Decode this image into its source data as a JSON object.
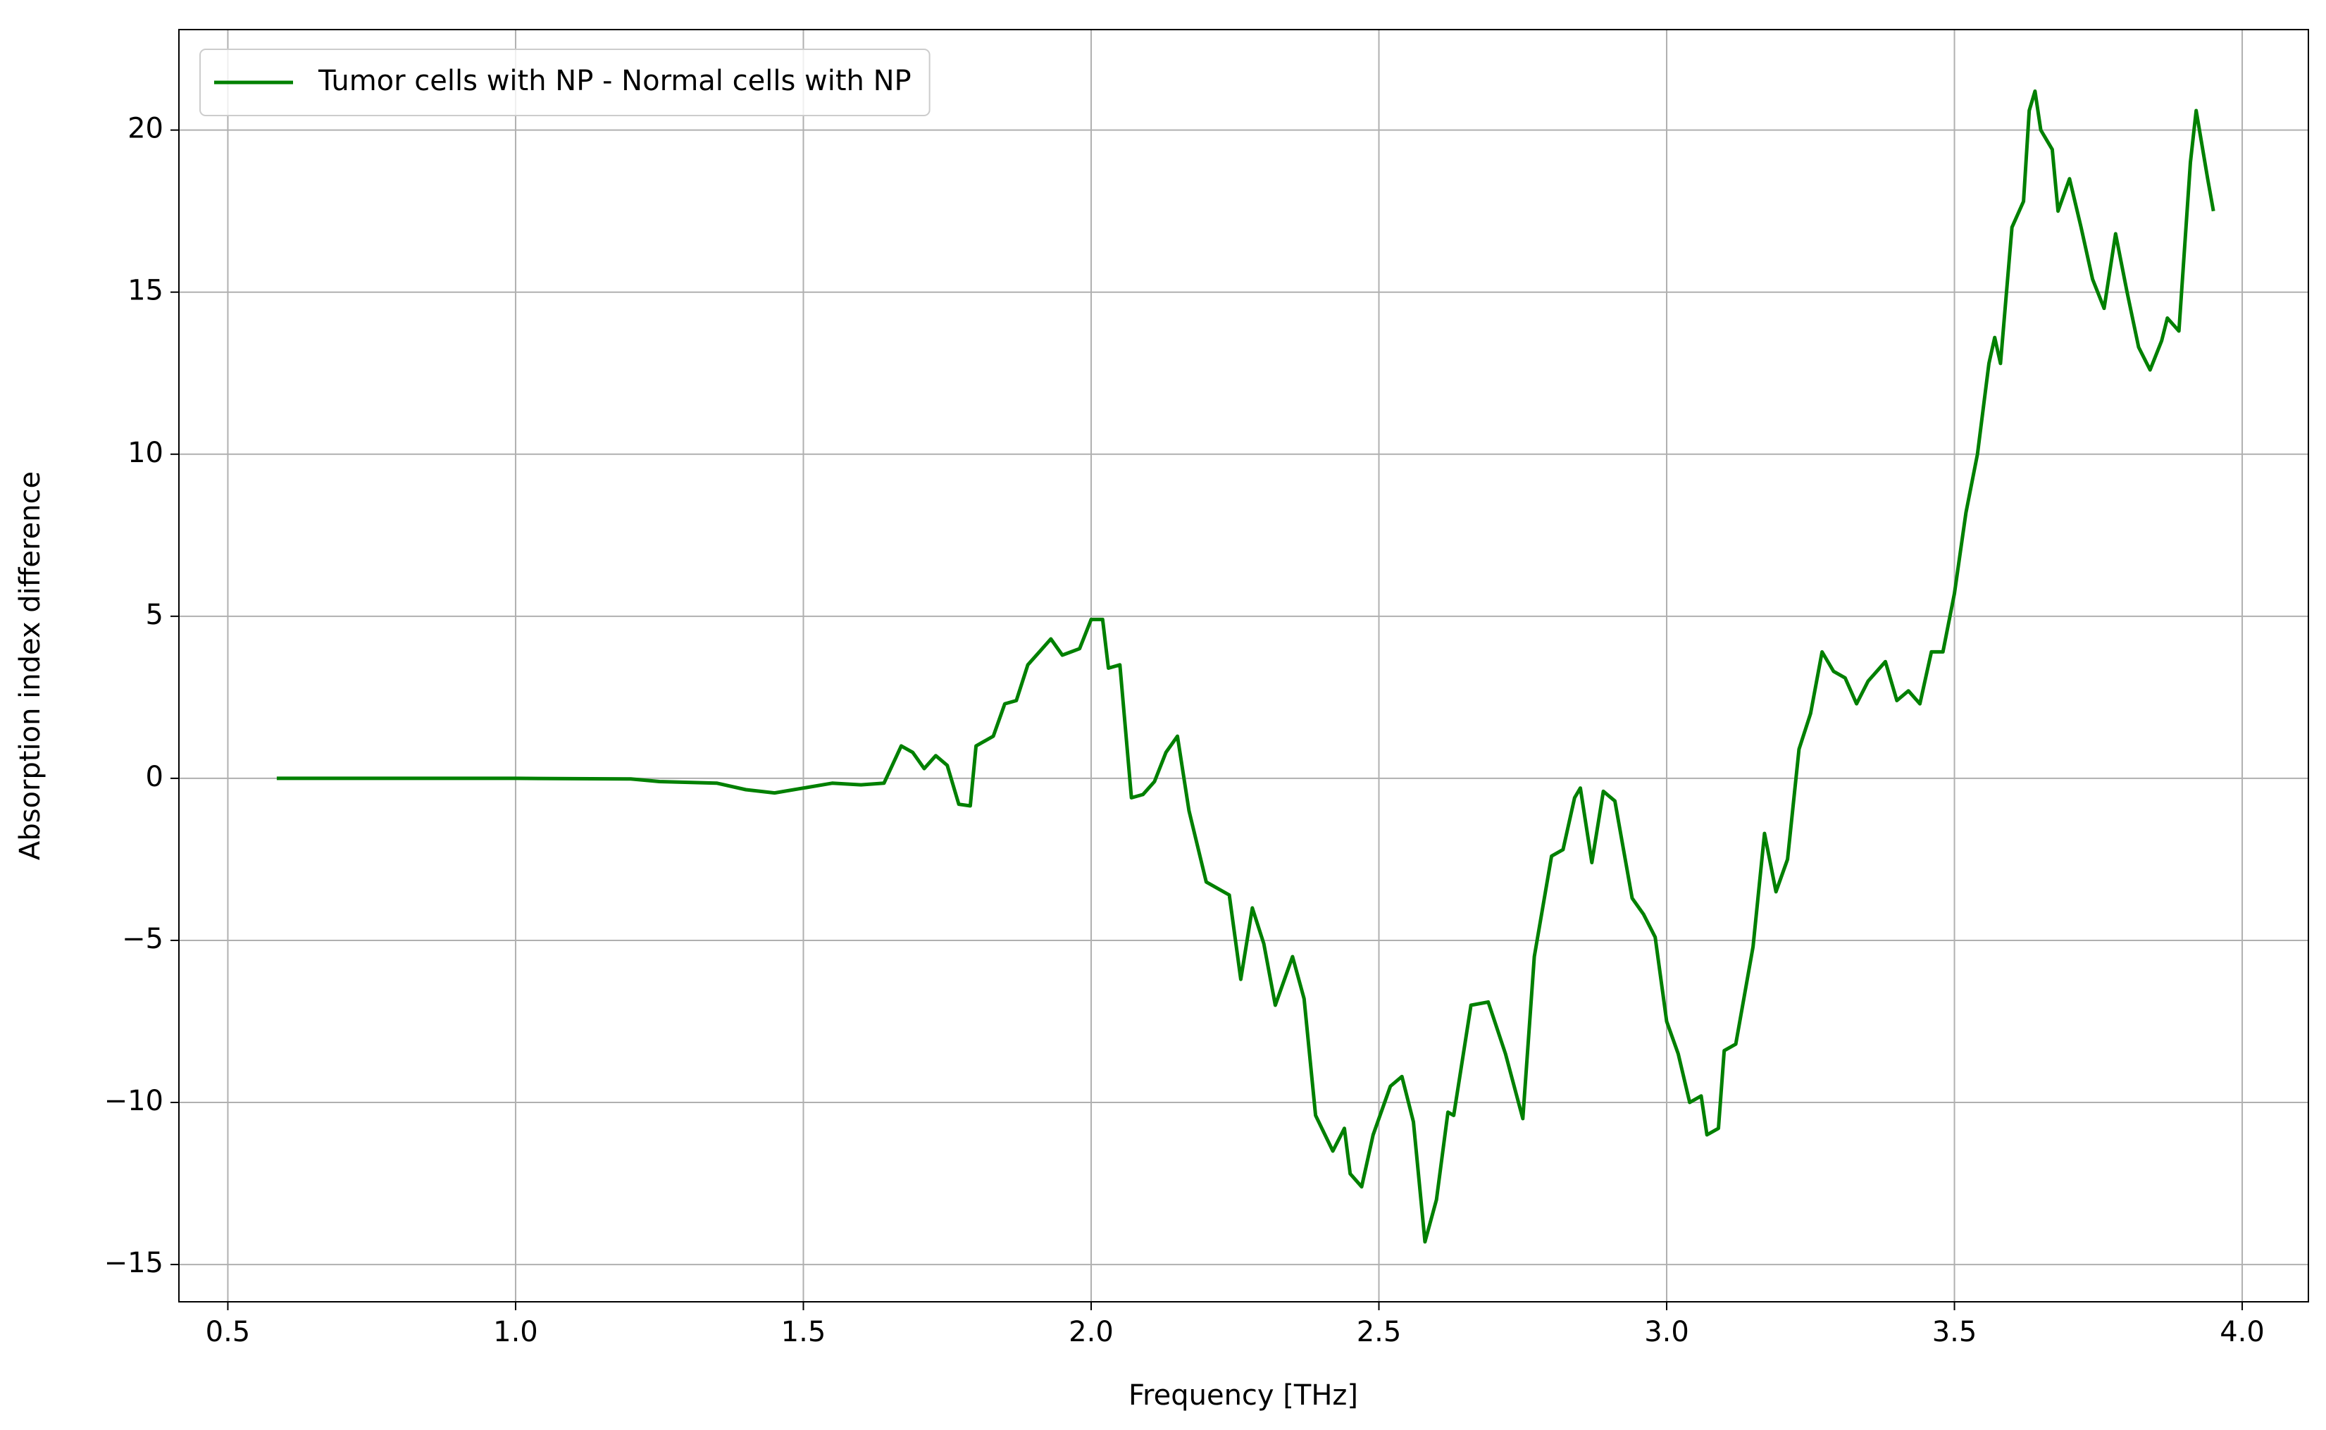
{
  "chart_data": {
    "type": "line",
    "xlabel": "Frequency [THz]",
    "ylabel": "Absorption index difference",
    "xlim": [
      0.415,
      4.115
    ],
    "ylim": [
      -16.15,
      23.1
    ],
    "xticks": [
      0.5,
      {
        "value": 1,
        "label": "1.0"
      },
      1.5,
      {
        "value": 2,
        "label": "2.0"
      },
      2.5,
      {
        "value": 3,
        "label": "3.0"
      },
      3.5,
      {
        "value": 4,
        "label": "4.0"
      }
    ],
    "yticks": [
      {
        "value": -15,
        "label": "−15"
      },
      {
        "value": -10,
        "label": "−10"
      },
      {
        "value": -5,
        "label": "−5"
      },
      0,
      5,
      10,
      15,
      20
    ],
    "grid": true,
    "legend": "upper left",
    "series": [
      {
        "name": "Tumor cells with NP - Normal cells with NP",
        "color": "#008000",
        "x": [
          0.585,
          1.0,
          1.2,
          1.25,
          1.35,
          1.4,
          1.45,
          1.5,
          1.55,
          1.6,
          1.64,
          1.67,
          1.69,
          1.71,
          1.73,
          1.75,
          1.77,
          1.79,
          1.8,
          1.83,
          1.85,
          1.87,
          1.89,
          1.91,
          1.93,
          1.95,
          1.98,
          2.0,
          2.02,
          2.03,
          2.05,
          2.07,
          2.09,
          2.11,
          2.13,
          2.15,
          2.17,
          2.2,
          2.24,
          2.26,
          2.28,
          2.3,
          2.32,
          2.35,
          2.37,
          2.39,
          2.42,
          2.44,
          2.45,
          2.47,
          2.49,
          2.52,
          2.54,
          2.56,
          2.58,
          2.6,
          2.62,
          2.63,
          2.66,
          2.69,
          2.72,
          2.75,
          2.77,
          2.8,
          2.82,
          2.84,
          2.85,
          2.87,
          2.89,
          2.91,
          2.94,
          2.96,
          2.98,
          3.0,
          3.02,
          3.04,
          3.06,
          3.07,
          3.09,
          3.1,
          3.12,
          3.15,
          3.17,
          3.19,
          3.21,
          3.23,
          3.25,
          3.27,
          3.29,
          3.31,
          3.33,
          3.35,
          3.38,
          3.4,
          3.42,
          3.44,
          3.46,
          3.48,
          3.5,
          3.52,
          3.54,
          3.56,
          3.57,
          3.58,
          3.6,
          3.62,
          3.63,
          3.64,
          3.65,
          3.67,
          3.68,
          3.7,
          3.72,
          3.74,
          3.76,
          3.78,
          3.8,
          3.82,
          3.84,
          3.86,
          3.87,
          3.89,
          3.91,
          3.92,
          3.94,
          3.95
        ],
        "values": [
          0,
          0,
          -0.02,
          -0.1,
          -0.15,
          -0.35,
          -0.45,
          -0.3,
          -0.15,
          -0.2,
          -0.15,
          1.0,
          0.8,
          0.3,
          0.7,
          0.4,
          -0.8,
          -0.85,
          1.0,
          1.3,
          2.3,
          2.4,
          3.5,
          3.9,
          4.3,
          3.8,
          4.0,
          4.9,
          4.9,
          3.4,
          3.5,
          -0.6,
          -0.5,
          -0.1,
          0.8,
          1.3,
          -1.0,
          -3.2,
          -3.6,
          -6.2,
          -4.0,
          -5.1,
          -7.0,
          -5.5,
          -6.8,
          -10.4,
          -11.5,
          -10.8,
          -12.2,
          -12.6,
          -11.0,
          -9.5,
          -9.2,
          -10.6,
          -14.3,
          -13.0,
          -10.3,
          -10.4,
          -7.0,
          -6.9,
          -8.5,
          -10.5,
          -5.5,
          -2.4,
          -2.2,
          -0.6,
          -0.3,
          -2.6,
          -0.4,
          -0.7,
          -3.7,
          -4.2,
          -4.9,
          -7.5,
          -8.5,
          -10.0,
          -9.8,
          -11.0,
          -10.8,
          -8.4,
          -8.2,
          -5.2,
          -1.7,
          -3.5,
          -2.5,
          0.9,
          2.0,
          3.9,
          3.3,
          3.1,
          2.3,
          3.0,
          3.6,
          2.4,
          2.7,
          2.3,
          3.9,
          3.9,
          5.7,
          8.2,
          10.0,
          12.8,
          13.6,
          12.8,
          17.0,
          17.8,
          20.6,
          21.2,
          20.0,
          19.4,
          17.5,
          18.5,
          17.0,
          15.4,
          14.5,
          16.8,
          15.0,
          13.3,
          12.6,
          13.5,
          14.2,
          13.8,
          19.0,
          20.6,
          18.5,
          17.5
        ]
      }
    ]
  }
}
